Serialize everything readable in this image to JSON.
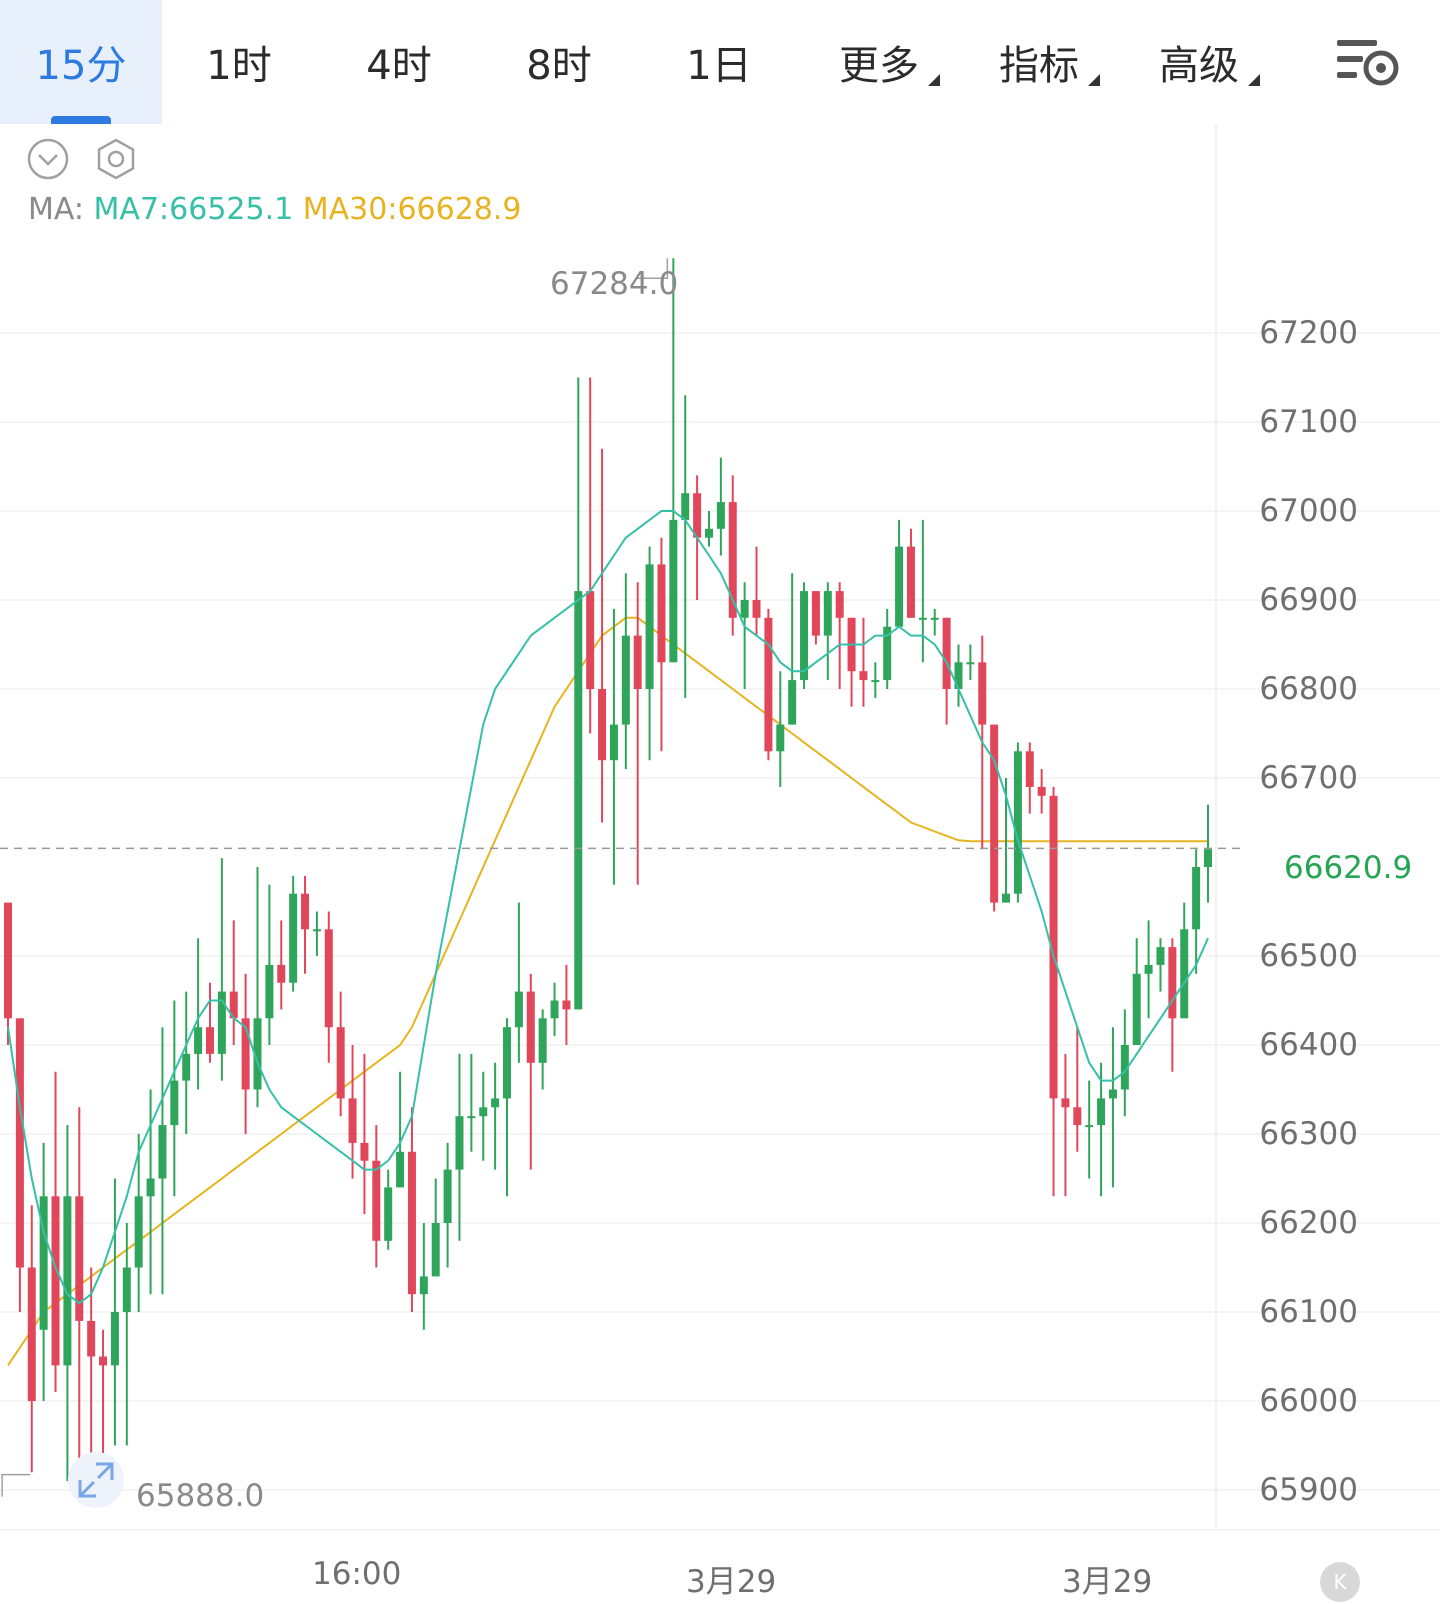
{
  "tabs": [
    {
      "label": "15分",
      "active": true,
      "dropdown": false
    },
    {
      "label": "1时",
      "active": false,
      "dropdown": false
    },
    {
      "label": "4时",
      "active": false,
      "dropdown": false
    },
    {
      "label": "8时",
      "active": false,
      "dropdown": false
    },
    {
      "label": "1日",
      "active": false,
      "dropdown": false
    },
    {
      "label": "更多",
      "active": false,
      "dropdown": true
    },
    {
      "label": "指标",
      "active": false,
      "dropdown": true
    },
    {
      "label": "高级",
      "active": false,
      "dropdown": true
    }
  ],
  "toolbar": {
    "settings_icon": "chart-settings-icon"
  },
  "chart_controls": {
    "collapse_icon": "chevron-down-circle-icon",
    "settings_icon": "hexagon-settings-icon"
  },
  "ma_legend": {
    "prefix": "MA:",
    "ma7_label": "MA7:66525.1",
    "ma30_label": "MA30:66628.9"
  },
  "colors": {
    "up": "#2ea55a",
    "down": "#e0475b",
    "ma7": "#35c0a7",
    "ma30": "#e8b320",
    "active_tab": "#2d7be0"
  },
  "price_labels": {
    "high": "67284.0",
    "low": "65888.0",
    "last": "66620.9"
  },
  "badge": {
    "label": "K"
  },
  "chart_data": {
    "type": "candlestick",
    "y_ticks": [
      "67200",
      "67100",
      "67000",
      "66900",
      "66800",
      "66700",
      "66500",
      "66400",
      "66300",
      "66200",
      "66100",
      "66000",
      "65900"
    ],
    "x_ticks": [
      "16:00",
      "3月29",
      "3月29"
    ],
    "ylim": [
      65850,
      67330
    ],
    "last_price": 66620.9,
    "high": 67284.0,
    "low": 65888.0,
    "candles": [
      [
        66560,
        66430,
        66560,
        66400
      ],
      [
        66430,
        66150,
        66430,
        66100
      ],
      [
        66150,
        66000,
        66220,
        65920
      ],
      [
        66080,
        66230,
        66290,
        66000
      ],
      [
        66230,
        66040,
        66370,
        66010
      ],
      [
        66040,
        66230,
        66310,
        65910
      ],
      [
        66230,
        66090,
        66330,
        65900
      ],
      [
        66090,
        66050,
        66150,
        65900
      ],
      [
        66050,
        66040,
        66080,
        65900
      ],
      [
        66040,
        66100,
        66250,
        65950
      ],
      [
        66100,
        66150,
        66200,
        65950
      ],
      [
        66150,
        66230,
        66300,
        66100
      ],
      [
        66230,
        66250,
        66350,
        66120
      ],
      [
        66250,
        66310,
        66420,
        66120
      ],
      [
        66310,
        66360,
        66450,
        66230
      ],
      [
        66360,
        66390,
        66460,
        66300
      ],
      [
        66390,
        66420,
        66520,
        66350
      ],
      [
        66420,
        66390,
        66470,
        66380
      ],
      [
        66390,
        66460,
        66610,
        66360
      ],
      [
        66460,
        66430,
        66540,
        66400
      ],
      [
        66430,
        66350,
        66480,
        66300
      ],
      [
        66350,
        66430,
        66600,
        66330
      ],
      [
        66430,
        66490,
        66580,
        66400
      ],
      [
        66490,
        66470,
        66540,
        66440
      ],
      [
        66470,
        66570,
        66590,
        66460
      ],
      [
        66570,
        66530,
        66590,
        66480
      ],
      [
        66530,
        66530,
        66550,
        66500
      ],
      [
        66530,
        66420,
        66550,
        66380
      ],
      [
        66420,
        66340,
        66460,
        66320
      ],
      [
        66340,
        66290,
        66400,
        66250
      ],
      [
        66290,
        66270,
        66390,
        66210
      ],
      [
        66270,
        66180,
        66310,
        66150
      ],
      [
        66180,
        66240,
        66260,
        66170
      ],
      [
        66240,
        66280,
        66370,
        66240
      ],
      [
        66280,
        66120,
        66330,
        66100
      ],
      [
        66120,
        66140,
        66200,
        66080
      ],
      [
        66140,
        66200,
        66250,
        66140
      ],
      [
        66200,
        66260,
        66290,
        66150
      ],
      [
        66260,
        66320,
        66390,
        66180
      ],
      [
        66320,
        66320,
        66390,
        66280
      ],
      [
        66320,
        66330,
        66370,
        66270
      ],
      [
        66330,
        66340,
        66380,
        66260
      ],
      [
        66340,
        66420,
        66430,
        66230
      ],
      [
        66420,
        66460,
        66560,
        66380
      ],
      [
        66460,
        66380,
        66480,
        66260
      ],
      [
        66380,
        66430,
        66440,
        66350
      ],
      [
        66430,
        66450,
        66470,
        66410
      ],
      [
        66450,
        66440,
        66490,
        66400
      ],
      [
        66440,
        66910,
        67150,
        66440
      ],
      [
        66910,
        66800,
        67150,
        66750
      ],
      [
        66800,
        66720,
        67070,
        66650
      ],
      [
        66720,
        66760,
        66890,
        66580
      ],
      [
        66760,
        66860,
        66930,
        66710
      ],
      [
        66860,
        66800,
        66920,
        66580
      ],
      [
        66800,
        66940,
        66960,
        66720
      ],
      [
        66940,
        66830,
        66970,
        66730
      ],
      [
        66830,
        66990,
        67284,
        66830
      ],
      [
        66990,
        67020,
        67130,
        66790
      ],
      [
        67020,
        66970,
        67040,
        66900
      ],
      [
        66970,
        66980,
        67000,
        66960
      ],
      [
        66980,
        67010,
        67060,
        66950
      ],
      [
        67010,
        66880,
        67040,
        66860
      ],
      [
        66880,
        66900,
        66920,
        66800
      ],
      [
        66900,
        66880,
        66960,
        66860
      ],
      [
        66880,
        66730,
        66890,
        66720
      ],
      [
        66730,
        66760,
        66820,
        66690
      ],
      [
        66760,
        66810,
        66930,
        66760
      ],
      [
        66810,
        66910,
        66920,
        66800
      ],
      [
        66910,
        66860,
        66910,
        66850
      ],
      [
        66860,
        66910,
        66920,
        66810
      ],
      [
        66910,
        66880,
        66920,
        66800
      ],
      [
        66880,
        66820,
        66880,
        66780
      ],
      [
        66820,
        66810,
        66880,
        66780
      ],
      [
        66810,
        66810,
        66830,
        66790
      ],
      [
        66810,
        66870,
        66890,
        66800
      ],
      [
        66870,
        66960,
        66990,
        66870
      ],
      [
        66960,
        66880,
        66980,
        66880
      ],
      [
        66880,
        66880,
        66990,
        66830
      ],
      [
        66880,
        66880,
        66890,
        66860
      ],
      [
        66880,
        66800,
        66880,
        66760
      ],
      [
        66800,
        66830,
        66850,
        66780
      ],
      [
        66830,
        66830,
        66850,
        66810
      ],
      [
        66830,
        66760,
        66860,
        66620
      ],
      [
        66760,
        66560,
        66760,
        66550
      ],
      [
        66560,
        66570,
        66700,
        66560
      ],
      [
        66570,
        66730,
        66740,
        66560
      ],
      [
        66730,
        66690,
        66740,
        66660
      ],
      [
        66690,
        66680,
        66710,
        66660
      ],
      [
        66680,
        66340,
        66690,
        66230
      ],
      [
        66340,
        66330,
        66390,
        66230
      ],
      [
        66330,
        66310,
        66420,
        66280
      ],
      [
        66310,
        66310,
        66360,
        66250
      ],
      [
        66310,
        66340,
        66380,
        66230
      ],
      [
        66340,
        66350,
        66420,
        66240
      ],
      [
        66350,
        66400,
        66440,
        66320
      ],
      [
        66400,
        66480,
        66520,
        66400
      ],
      [
        66480,
        66490,
        66540,
        66430
      ],
      [
        66490,
        66510,
        66520,
        66460
      ],
      [
        66510,
        66430,
        66520,
        66370
      ],
      [
        66430,
        66530,
        66560,
        66440
      ],
      [
        66530,
        66600,
        66620,
        66480
      ],
      [
        66600,
        66620,
        66670,
        66560
      ]
    ],
    "ma7": [
      66420,
      66330,
      66250,
      66190,
      66150,
      66120,
      66110,
      66120,
      66150,
      66190,
      66230,
      66280,
      66310,
      66340,
      66370,
      66400,
      66430,
      66450,
      66450,
      66430,
      66420,
      66380,
      66350,
      66330,
      66320,
      66310,
      66300,
      66290,
      66280,
      66270,
      66260,
      66260,
      66270,
      66290,
      66320,
      66400,
      66480,
      66550,
      66620,
      66690,
      66760,
      66800,
      66820,
      66840,
      66860,
      66870,
      66880,
      66890,
      66900,
      66910,
      66930,
      66950,
      66970,
      66980,
      66990,
      67000,
      67000,
      66990,
      66970,
      66950,
      66930,
      66900,
      66870,
      66860,
      66850,
      66830,
      66820,
      66820,
      66830,
      66840,
      66850,
      66850,
      66850,
      66860,
      66860,
      66870,
      66860,
      66860,
      66850,
      66830,
      66800,
      66770,
      66740,
      66720,
      66680,
      66630,
      66590,
      66550,
      66500,
      66460,
      66420,
      66380,
      66360,
      66360,
      66370,
      66390,
      66410,
      66430,
      66450,
      66470,
      66490,
      66520
    ],
    "ma30": [
      66040,
      66060,
      66080,
      66100,
      66110,
      66120,
      66130,
      66140,
      66150,
      66160,
      66170,
      66180,
      66190,
      66200,
      66210,
      66220,
      66230,
      66240,
      66250,
      66260,
      66270,
      66280,
      66290,
      66300,
      66310,
      66320,
      66330,
      66340,
      66350,
      66360,
      66370,
      66380,
      66390,
      66400,
      66420,
      66450,
      66480,
      66510,
      66540,
      66570,
      66600,
      66630,
      66660,
      66690,
      66720,
      66750,
      66780,
      66800,
      66820,
      66840,
      66860,
      66870,
      66880,
      66880,
      66870,
      66860,
      66850,
      66840,
      66830,
      66820,
      66810,
      66800,
      66790,
      66780,
      66770,
      66760,
      66750,
      66740,
      66730,
      66720,
      66710,
      66700,
      66690,
      66680,
      66670,
      66660,
      66650,
      66645,
      66640,
      66635,
      66630,
      66629,
      66629,
      66629,
      66629,
      66629,
      66629,
      66629,
      66629,
      66629,
      66629,
      66629,
      66629,
      66629,
      66629,
      66629,
      66629,
      66629,
      66629,
      66629,
      66629,
      66629
    ]
  }
}
